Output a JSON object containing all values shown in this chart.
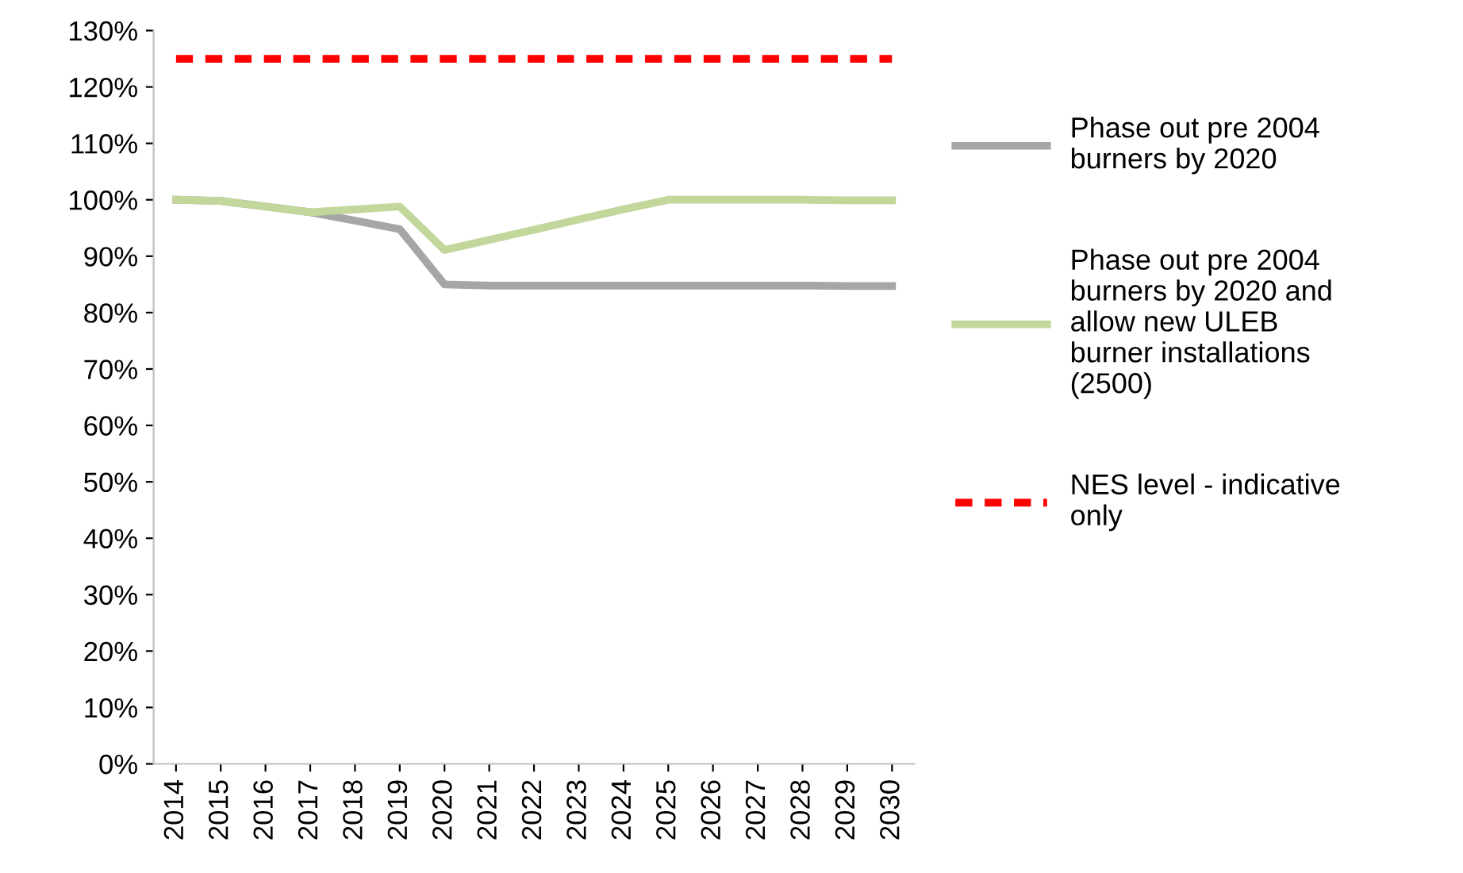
{
  "chart_data": {
    "type": "line",
    "categories": [
      "2014",
      "2015",
      "2016",
      "2017",
      "2018",
      "2019",
      "2020",
      "2021",
      "2022",
      "2023",
      "2024",
      "2025",
      "2026",
      "2027",
      "2028",
      "2029",
      "2030"
    ],
    "series": [
      {
        "name": "Phase out pre 2004\nburners by 2020",
        "color": "#a6a6a6",
        "values": [
          100,
          99.8,
          98.8,
          97.8,
          96.3,
          94.8,
          85.0,
          84.8,
          84.8,
          84.8,
          84.8,
          84.8,
          84.8,
          84.8,
          84.8,
          84.7,
          84.7
        ]
      },
      {
        "name": "Phase out pre 2004\nburners by 2020 and\nallow new ULEB\nburner installations\n(2500)",
        "color": "#c3d69b",
        "values": [
          100,
          99.8,
          98.8,
          97.8,
          98.3,
          98.8,
          91.1,
          92.9,
          94.7,
          96.5,
          98.3,
          100,
          100,
          100,
          100,
          99.9,
          99.9
        ]
      },
      {
        "name": "NES level - indicative\nonly",
        "color": "#ff0000",
        "line_style": "dashed",
        "values": [
          125,
          125,
          125,
          125,
          125,
          125,
          125,
          125,
          125,
          125,
          125,
          125,
          125,
          125,
          125,
          125,
          125
        ]
      }
    ],
    "ylim": [
      0,
      130
    ],
    "yticks": [
      {
        "value": 0,
        "label": "0%"
      },
      {
        "value": 10,
        "label": "10%"
      },
      {
        "value": 20,
        "label": "20%"
      },
      {
        "value": 30,
        "label": "30%"
      },
      {
        "value": 40,
        "label": "40%"
      },
      {
        "value": 50,
        "label": "50%"
      },
      {
        "value": 60,
        "label": "60%"
      },
      {
        "value": 70,
        "label": "70%"
      },
      {
        "value": 80,
        "label": "80%"
      },
      {
        "value": 90,
        "label": "90%"
      },
      {
        "value": 100,
        "label": "100%"
      },
      {
        "value": 110,
        "label": "110%"
      },
      {
        "value": 120,
        "label": "120%"
      },
      {
        "value": 130,
        "label": "130%"
      }
    ],
    "grid": false,
    "legend": "right",
    "marker": "none",
    "line_style": "solid"
  }
}
